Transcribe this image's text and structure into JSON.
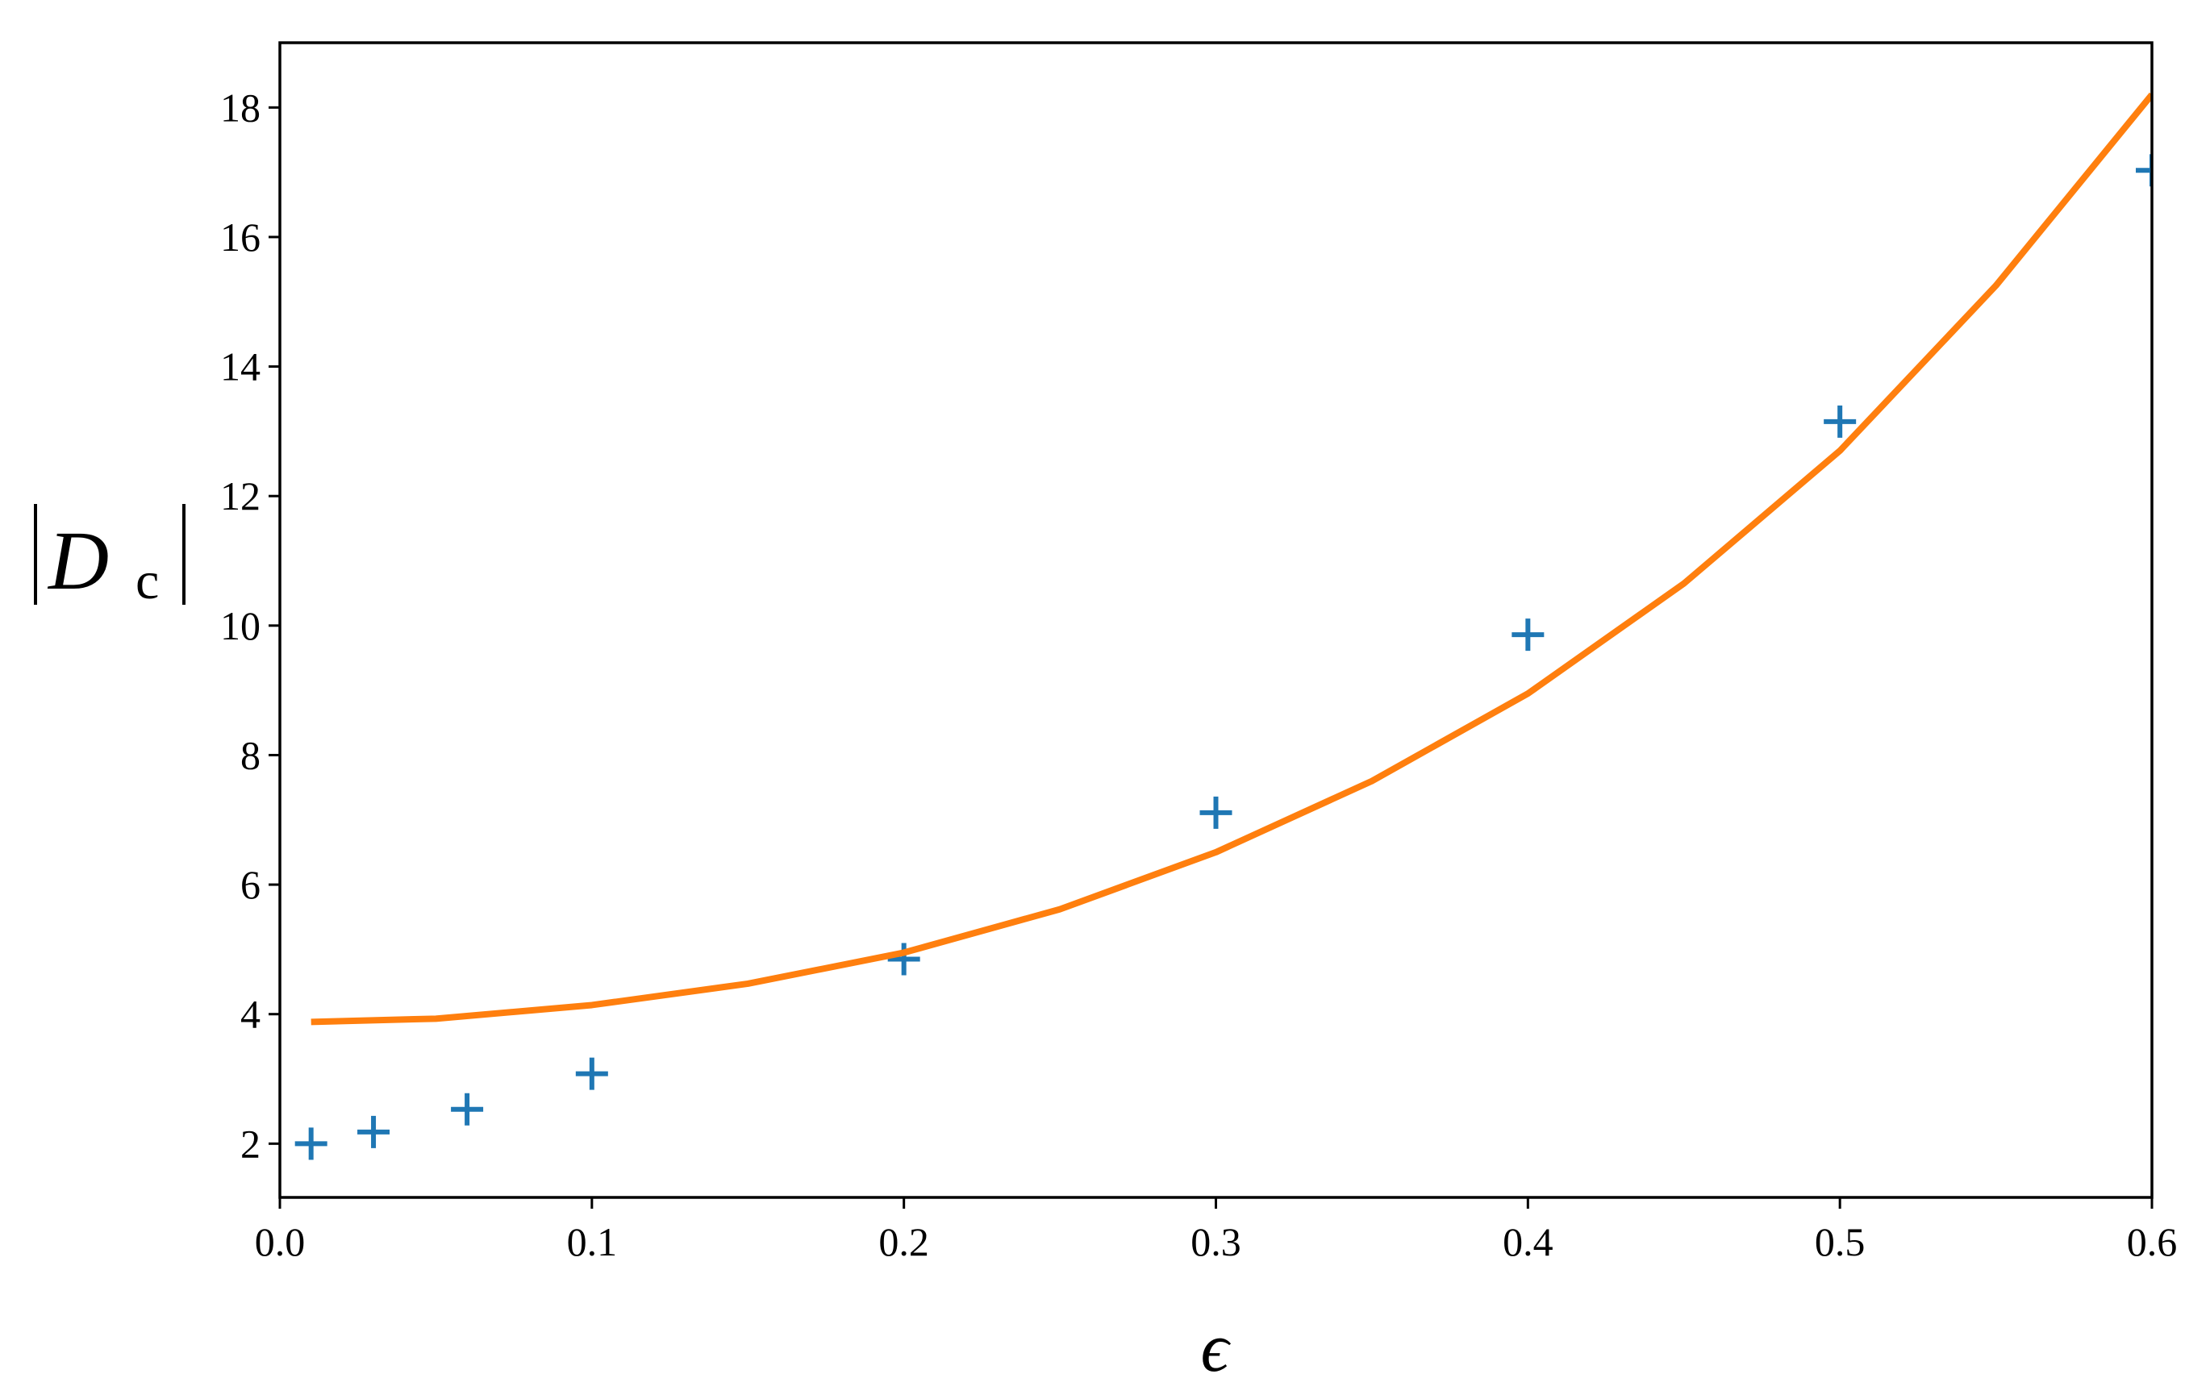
{
  "chart_data": {
    "type": "scatter",
    "xlabel": "ϵ",
    "ylabel": {
      "base": "D",
      "subscript": "c"
    },
    "xlim": [
      0,
      0.6
    ],
    "ylim": [
      1.17,
      19.0
    ],
    "xticks": [
      {
        "value": 0,
        "label": "0.0"
      },
      0.1,
      0.2,
      0.3,
      0.4,
      0.5,
      0.6
    ],
    "yticks": [
      2,
      4,
      6,
      8,
      10,
      12,
      14,
      16,
      18
    ],
    "series": [
      {
        "type": "scatter",
        "marker": "plus",
        "color": "#1f77b4",
        "x": [
          0.01,
          0.03,
          0.06,
          0.1,
          0.2,
          0.3,
          0.4,
          0.5,
          0.6
        ],
        "values": [
          2.0,
          2.18,
          2.53,
          3.08,
          4.85,
          7.11,
          9.86,
          13.15,
          17.03
        ]
      },
      {
        "type": "line",
        "color": "#ff7f0e",
        "x": [
          0.01,
          0.05,
          0.1,
          0.15,
          0.2,
          0.25,
          0.3,
          0.35,
          0.4,
          0.45,
          0.5,
          0.55,
          0.6
        ],
        "values": [
          3.88,
          3.93,
          4.14,
          4.47,
          4.95,
          5.62,
          6.5,
          7.6,
          8.95,
          10.65,
          12.7,
          15.25,
          18.2
        ]
      }
    ]
  }
}
